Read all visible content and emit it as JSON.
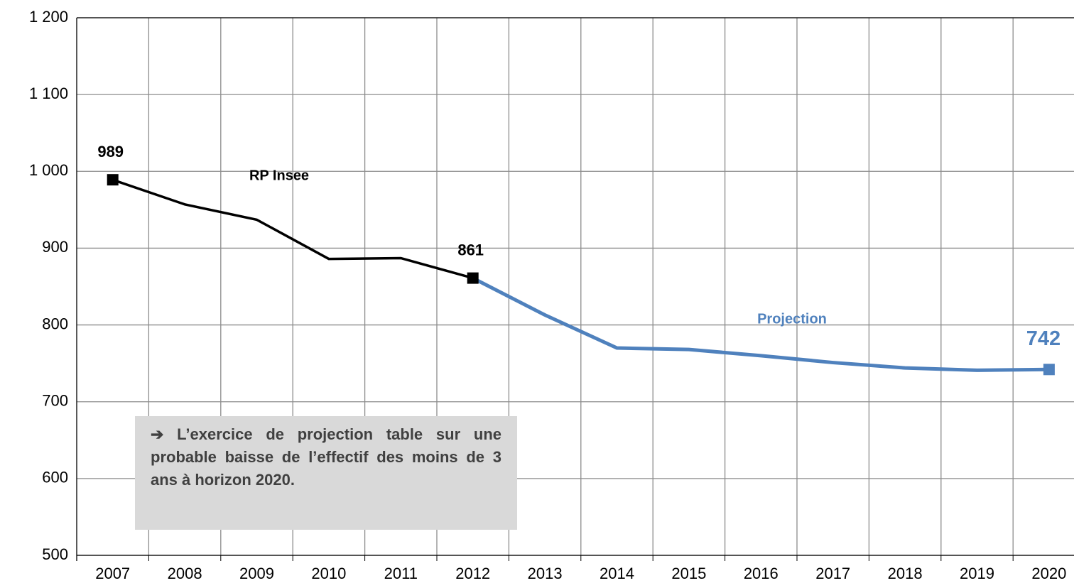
{
  "chart_data": {
    "type": "line",
    "categories": [
      "2007",
      "2008",
      "2009",
      "2010",
      "2011",
      "2012",
      "2013",
      "2014",
      "2015",
      "2016",
      "2017",
      "2018",
      "2019",
      "2020"
    ],
    "series": [
      {
        "name": "RP Insee",
        "color": "#000000",
        "values": [
          989,
          957,
          937,
          886,
          887,
          861,
          null,
          null,
          null,
          null,
          null,
          null,
          null,
          null
        ]
      },
      {
        "name": "Projection",
        "color": "#4f81bd",
        "values": [
          null,
          null,
          null,
          null,
          null,
          861,
          813,
          770,
          768,
          760,
          751,
          744,
          741,
          742
        ]
      }
    ],
    "ylim": [
      500,
      1200
    ],
    "yticks": [
      500,
      600,
      700,
      800,
      900,
      {
        "value": 1000,
        "label": "1 000"
      },
      {
        "value": 1100,
        "label": "1 100"
      },
      {
        "value": 1200,
        "label": "1 200"
      }
    ],
    "grid": true,
    "annotation": "➔ L’exercice de projection table sur une probable baisse de l’effectif des moins de 3 ans à horizon 2020."
  }
}
